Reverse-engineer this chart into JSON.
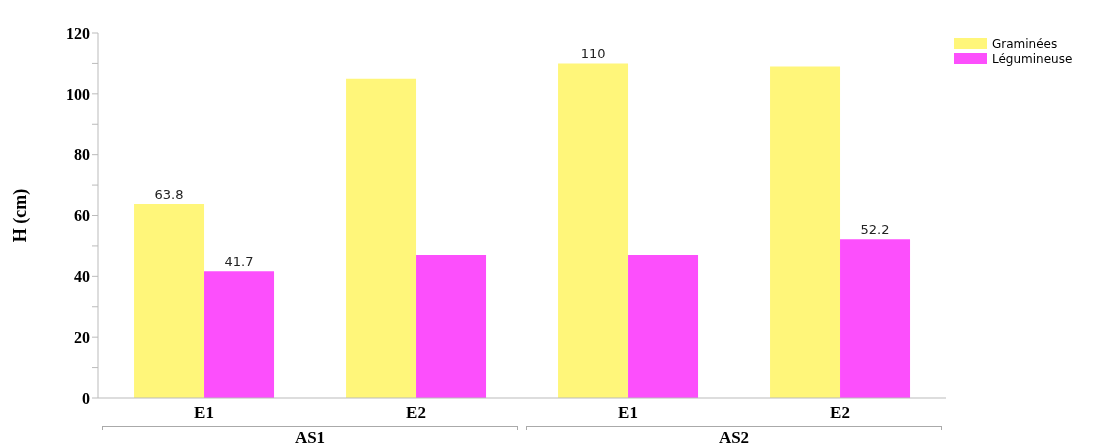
{
  "chart_data": {
    "type": "bar",
    "ylabel": "H (cm)",
    "categories": [
      "E1",
      "E2",
      "E1",
      "E2"
    ],
    "series": [
      {
        "name": "Graminées",
        "color": "#fff67a",
        "values": [
          63.8,
          105,
          110,
          109
        ],
        "value_labels": [
          "63.8",
          null,
          "110",
          null
        ]
      },
      {
        "name": "Légumineuse",
        "color": "#fc4ffc",
        "values": [
          41.7,
          47,
          47,
          52.2
        ],
        "value_labels": [
          "41.7",
          null,
          null,
          "52.2"
        ]
      }
    ],
    "annotations": [
      "AS1",
      "AS2"
    ],
    "ylim": [
      0,
      120
    ],
    "yticks": [
      0,
      {
        "value": 10,
        "label": null
      },
      20,
      {
        "value": 30,
        "label": null
      },
      40,
      {
        "value": 50,
        "label": null
      },
      60,
      {
        "value": 70,
        "label": null
      },
      80,
      {
        "value": 90,
        "label": null
      },
      100,
      {
        "value": 110,
        "label": null
      },
      120
    ],
    "grid": false,
    "legend": "top right"
  }
}
